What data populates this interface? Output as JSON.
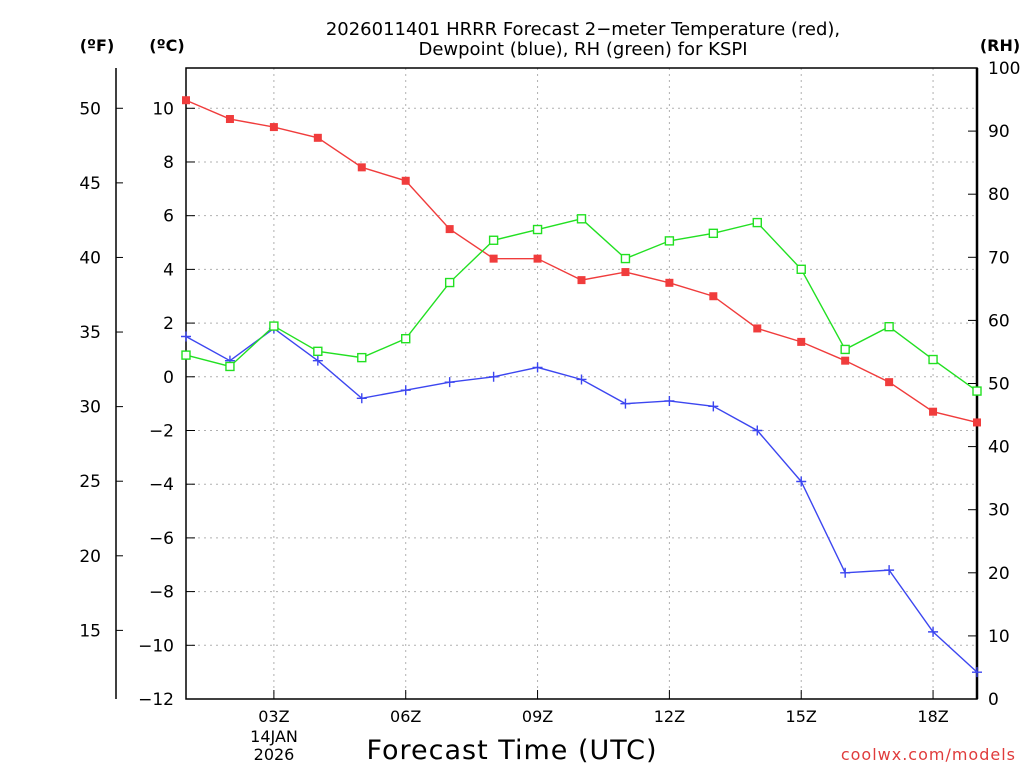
{
  "chart_data": {
    "type": "line",
    "title": [
      "2026011401 HRRR Forecast 2−meter Temperature (red),",
      "Dewpoint (blue), RH (green) for KSPI"
    ],
    "xlabel": "Forecast Time (UTC)",
    "axis_units": {
      "left_outer": "(ºF)",
      "left_inner": "(ºC)",
      "right": "(RH)"
    },
    "x": [
      1,
      2,
      3,
      4,
      5,
      6,
      7,
      8,
      9,
      10,
      11,
      12,
      13,
      14,
      15,
      16,
      17,
      18,
      19
    ],
    "xlim": [
      1,
      19
    ],
    "xticks": [
      {
        "x": 3,
        "label": "03Z"
      },
      {
        "x": 6,
        "label": "06Z"
      },
      {
        "x": 9,
        "label": "09Z"
      },
      {
        "x": 12,
        "label": "12Z"
      },
      {
        "x": 15,
        "label": "15Z"
      },
      {
        "x": 18,
        "label": "18Z"
      }
    ],
    "date_label": [
      "14JAN",
      "2026"
    ],
    "celsius_axis": {
      "ylim": [
        -12,
        11.5
      ],
      "ticks": [
        10,
        8,
        6,
        4,
        2,
        0,
        -2,
        -4,
        -6,
        -8,
        -10,
        -12
      ]
    },
    "fahrenheit_axis": {
      "ticks": [
        50,
        45,
        40,
        35,
        30,
        25,
        20,
        15
      ]
    },
    "rh_axis": {
      "ylim": [
        0,
        100
      ],
      "ticks": [
        100,
        90,
        80,
        70,
        60,
        50,
        40,
        30,
        20,
        10,
        0
      ]
    },
    "grid": true,
    "series": [
      {
        "name": "2-meter Temperature",
        "axis": "celsius",
        "color": "#f03c3c",
        "marker": "filled-square",
        "values": [
          10.3,
          9.6,
          9.3,
          8.9,
          7.8,
          7.3,
          5.5,
          4.4,
          4.4,
          3.6,
          3.9,
          3.5,
          3.0,
          1.8,
          1.3,
          0.6,
          -0.2,
          -1.3,
          -1.7
        ]
      },
      {
        "name": "Dewpoint",
        "axis": "celsius",
        "color": "#3c46f0",
        "marker": "plus",
        "values": [
          1.5,
          0.6,
          1.8,
          0.6,
          -0.8,
          -0.5,
          -0.2,
          0.0,
          0.35,
          -0.1,
          -1.0,
          -0.9,
          -1.1,
          -2.0,
          -3.9,
          -7.3,
          -7.2,
          -9.5,
          -11.0
        ]
      },
      {
        "name": "RH",
        "axis": "rh",
        "color": "#22e022",
        "marker": "open-square",
        "values": [
          54.5,
          52.7,
          59.1,
          55.1,
          54.1,
          57.1,
          66.0,
          72.7,
          74.4,
          76.1,
          69.8,
          72.6,
          73.8,
          75.5,
          68.1,
          55.4,
          59.0,
          53.8,
          48.8
        ]
      }
    ],
    "credit": {
      "text": "coolwx.com/models",
      "color": "#e03c3c"
    }
  }
}
